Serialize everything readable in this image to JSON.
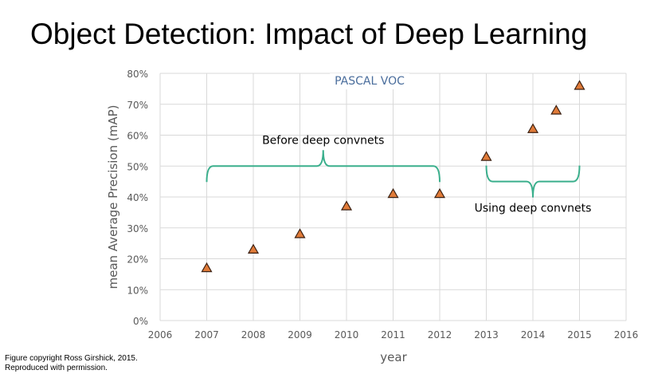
{
  "slide": {
    "title": "Object Detection: Impact of Deep Learning",
    "credit_line1": "Figure copyright Ross Girshick, 2015.",
    "credit_line2": "Reproduced with permission."
  },
  "chart_data": {
    "type": "scatter",
    "title": "PASCAL VOC",
    "xlabel": "year",
    "ylabel": "mean Average Precision (mAP)",
    "xlim": [
      2006,
      2016
    ],
    "ylim": [
      0,
      80
    ],
    "x_ticks": [
      "2006",
      "2007",
      "2008",
      "2009",
      "2010",
      "2011",
      "2012",
      "2013",
      "2014",
      "2015",
      "2016"
    ],
    "y_ticks": [
      "0%",
      "10%",
      "20%",
      "30%",
      "40%",
      "50%",
      "60%",
      "70%",
      "80%"
    ],
    "grid": true,
    "marker": "triangle",
    "marker_color": "#e07b39",
    "marker_edge": "#3a1f10",
    "points": [
      {
        "x": 2007,
        "y": 17
      },
      {
        "x": 2008,
        "y": 23
      },
      {
        "x": 2009,
        "y": 28
      },
      {
        "x": 2010,
        "y": 37
      },
      {
        "x": 2011,
        "y": 41
      },
      {
        "x": 2012,
        "y": 41
      },
      {
        "x": 2013,
        "y": 53
      },
      {
        "x": 2014,
        "y": 62
      },
      {
        "x": 2014.5,
        "y": 68
      },
      {
        "x": 2015,
        "y": 76
      }
    ],
    "annotations": [
      {
        "text": "Before deep convnets",
        "x_start": 2007,
        "x_end": 2012,
        "y": 50,
        "direction": "up"
      },
      {
        "text": "Using deep convnets",
        "x_start": 2013,
        "x_end": 2015,
        "y": 45,
        "direction": "down"
      }
    ],
    "bracket_color": "#3aaf8c",
    "title_color": "#4a6d9c"
  }
}
